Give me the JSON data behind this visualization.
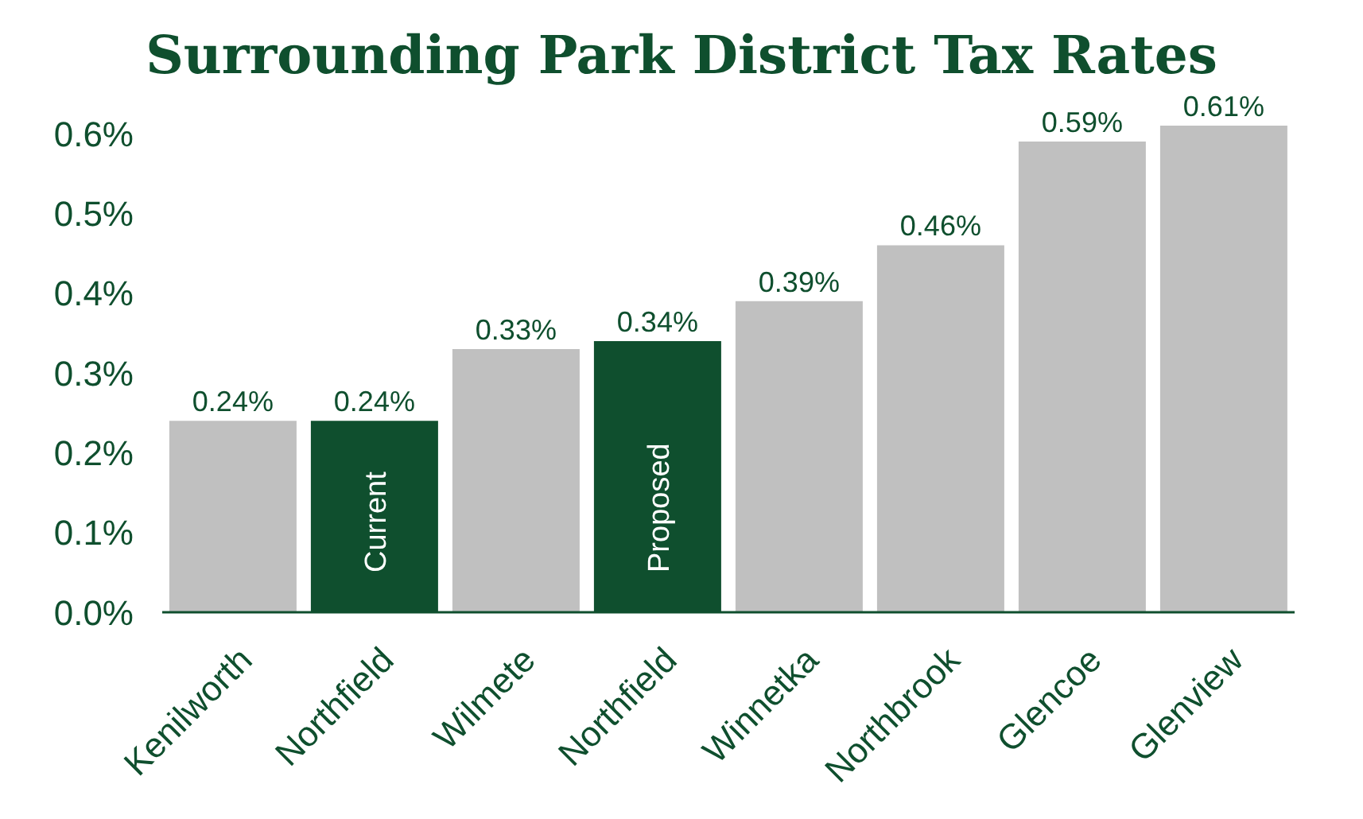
{
  "chart_data": {
    "type": "bar",
    "title": "Surrounding Park District Tax Rates",
    "categories": [
      "Kenilworth",
      "Northfield",
      "Wilmete",
      "Northfield",
      "Winnetka",
      "Northbrook",
      "Glencoe",
      "Glenview"
    ],
    "values": [
      0.24,
      0.24,
      0.33,
      0.34,
      0.39,
      0.46,
      0.59,
      0.61
    ],
    "colors": [
      "#c0c0c0",
      "#0f4f2e",
      "#c0c0c0",
      "#0f4f2e",
      "#c0c0c0",
      "#c0c0c0",
      "#c0c0c0",
      "#c0c0c0"
    ],
    "value_labels": [
      "0.24%",
      "0.24%",
      "0.33%",
      "0.34%",
      "0.39%",
      "0.46%",
      "0.59%",
      "0.61%"
    ],
    "ylim": [
      0,
      0.61
    ],
    "yticks": [
      {
        "value": 0,
        "label": "0.0%"
      },
      {
        "value": 0.1,
        "label": "0.1%"
      },
      {
        "value": 0.2,
        "label": "0.2%"
      },
      {
        "value": 0.3,
        "label": "0.3%"
      },
      {
        "value": 0.4,
        "label": "0.4%"
      },
      {
        "value": 0.5,
        "label": "0.5%"
      },
      {
        "value": 0.6,
        "label": "0.6%"
      }
    ],
    "annotations": [
      "Current",
      "Proposed"
    ]
  }
}
